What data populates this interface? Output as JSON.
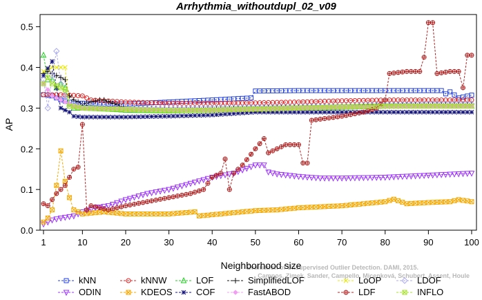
{
  "chart_data": {
    "type": "line",
    "title": "Arrhythmia_withoutdupl_02_v09",
    "xlabel": "Neighborhood size",
    "ylabel": "AP",
    "xlim": [
      0,
      100
    ],
    "ylim": [
      0,
      0.53
    ],
    "xticks": [
      1,
      10,
      20,
      30,
      40,
      50,
      60,
      70,
      80,
      90,
      100
    ],
    "yticks": [
      0.0,
      0.1,
      0.2,
      0.3,
      0.4,
      0.5
    ],
    "grid": false,
    "legend_position": "bottom",
    "watermark_lines": [
      "Campos, Zimek, Sander, Campello, Micenková, Schubert, Assent, Houle",
      "Evaluation of Unsupervised Outlier Detection. DAMI, 2015."
    ],
    "series": [
      {
        "name": "kNN",
        "color": "#1f3ee0",
        "marker": "square",
        "points": [
          [
            1,
            0.333
          ],
          [
            3,
            0.33
          ],
          [
            5,
            0.32
          ],
          [
            8,
            0.312
          ],
          [
            10,
            0.312
          ],
          [
            15,
            0.31
          ],
          [
            20,
            0.31
          ],
          [
            30,
            0.315
          ],
          [
            40,
            0.32
          ],
          [
            49,
            0.325
          ],
          [
            50,
            0.342
          ],
          [
            60,
            0.343
          ],
          [
            70,
            0.343
          ],
          [
            80,
            0.343
          ],
          [
            90,
            0.343
          ],
          [
            93,
            0.343
          ],
          [
            94,
            0.335
          ],
          [
            95,
            0.34
          ],
          [
            97,
            0.325
          ],
          [
            100,
            0.332
          ]
        ]
      },
      {
        "name": "kNNW",
        "color": "#e01f1f",
        "marker": "circle",
        "points": [
          [
            1,
            0.333
          ],
          [
            5,
            0.333
          ],
          [
            10,
            0.33
          ],
          [
            12,
            0.32
          ],
          [
            15,
            0.318
          ],
          [
            20,
            0.315
          ],
          [
            30,
            0.312
          ],
          [
            40,
            0.312
          ],
          [
            50,
            0.313
          ],
          [
            60,
            0.315
          ],
          [
            70,
            0.318
          ],
          [
            80,
            0.32
          ],
          [
            90,
            0.32
          ],
          [
            100,
            0.32
          ]
        ]
      },
      {
        "name": "LOF",
        "color": "#22cc22",
        "marker": "triangle-up",
        "points": [
          [
            1,
            0.43
          ],
          [
            2,
            0.37
          ],
          [
            3,
            0.37
          ],
          [
            4,
            0.35
          ],
          [
            5,
            0.36
          ],
          [
            6,
            0.35
          ],
          [
            7,
            0.31
          ],
          [
            8,
            0.3
          ],
          [
            10,
            0.3
          ],
          [
            15,
            0.298
          ],
          [
            20,
            0.295
          ],
          [
            30,
            0.293
          ],
          [
            40,
            0.295
          ],
          [
            50,
            0.298
          ],
          [
            60,
            0.3
          ],
          [
            70,
            0.302
          ],
          [
            80,
            0.305
          ],
          [
            90,
            0.305
          ],
          [
            100,
            0.305
          ]
        ]
      },
      {
        "name": "SimplifiedLOF",
        "color": "#111111",
        "marker": "plus",
        "points": [
          [
            1,
            0.385
          ],
          [
            2,
            0.39
          ],
          [
            3,
            0.385
          ],
          [
            4,
            0.38
          ],
          [
            5,
            0.375
          ],
          [
            6,
            0.37
          ],
          [
            7,
            0.33
          ],
          [
            8,
            0.32
          ],
          [
            10,
            0.31
          ],
          [
            14,
            0.32
          ],
          [
            15,
            0.32
          ],
          [
            20,
            0.3
          ],
          [
            30,
            0.298
          ],
          [
            40,
            0.298
          ],
          [
            50,
            0.3
          ],
          [
            60,
            0.303
          ],
          [
            70,
            0.305
          ],
          [
            80,
            0.31
          ],
          [
            90,
            0.31
          ],
          [
            100,
            0.31
          ]
        ]
      },
      {
        "name": "LoOP",
        "color": "#e8e800",
        "marker": "x",
        "points": [
          [
            1,
            0.39
          ],
          [
            3,
            0.4
          ],
          [
            4,
            0.4
          ],
          [
            5,
            0.4
          ],
          [
            6,
            0.4
          ],
          [
            7,
            0.31
          ],
          [
            10,
            0.3
          ],
          [
            20,
            0.296
          ],
          [
            30,
            0.294
          ],
          [
            40,
            0.294
          ],
          [
            50,
            0.296
          ],
          [
            60,
            0.3
          ],
          [
            70,
            0.302
          ],
          [
            80,
            0.305
          ],
          [
            90,
            0.305
          ],
          [
            100,
            0.305
          ]
        ]
      },
      {
        "name": "LDOF",
        "color": "#aaaaee",
        "marker": "diamond",
        "points": [
          [
            1,
            0.37
          ],
          [
            2,
            0.3
          ],
          [
            3,
            0.38
          ],
          [
            4,
            0.44
          ],
          [
            5,
            0.36
          ],
          [
            6,
            0.33
          ],
          [
            7,
            0.31
          ],
          [
            10,
            0.305
          ],
          [
            20,
            0.3
          ],
          [
            30,
            0.298
          ],
          [
            40,
            0.3
          ],
          [
            50,
            0.302
          ],
          [
            60,
            0.303
          ],
          [
            70,
            0.305
          ],
          [
            80,
            0.308
          ],
          [
            90,
            0.31
          ],
          [
            100,
            0.31
          ]
        ]
      },
      {
        "name": "ODIN",
        "color": "#9b30ff",
        "marker": "triangle-down",
        "points": [
          [
            1,
            0.015
          ],
          [
            3,
            0.025
          ],
          [
            5,
            0.03
          ],
          [
            8,
            0.035
          ],
          [
            10,
            0.045
          ],
          [
            13,
            0.055
          ],
          [
            16,
            0.06
          ],
          [
            20,
            0.075
          ],
          [
            25,
            0.09
          ],
          [
            30,
            0.1
          ],
          [
            35,
            0.115
          ],
          [
            40,
            0.13
          ],
          [
            45,
            0.14
          ],
          [
            50,
            0.16
          ],
          [
            52,
            0.16
          ],
          [
            53,
            0.143
          ],
          [
            55,
            0.138
          ],
          [
            60,
            0.132
          ],
          [
            65,
            0.128
          ],
          [
            70,
            0.128
          ],
          [
            80,
            0.13
          ],
          [
            90,
            0.135
          ],
          [
            100,
            0.14
          ]
        ]
      },
      {
        "name": "KDEOS",
        "color": "#f5a800",
        "marker": "square-x",
        "points": [
          [
            1,
            0.02
          ],
          [
            2,
            0.03
          ],
          [
            3,
            0.05
          ],
          [
            4,
            0.11
          ],
          [
            5,
            0.195
          ],
          [
            6,
            0.12
          ],
          [
            7,
            0.08
          ],
          [
            8,
            0.05
          ],
          [
            10,
            0.04
          ],
          [
            15,
            0.045
          ],
          [
            20,
            0.04
          ],
          [
            30,
            0.04
          ],
          [
            36,
            0.045
          ],
          [
            37,
            0.035
          ],
          [
            40,
            0.038
          ],
          [
            50,
            0.048
          ],
          [
            55,
            0.05
          ],
          [
            60,
            0.055
          ],
          [
            70,
            0.06
          ],
          [
            80,
            0.07
          ],
          [
            82,
            0.076
          ],
          [
            85,
            0.065
          ],
          [
            90,
            0.068
          ],
          [
            95,
            0.07
          ],
          [
            97,
            0.075
          ],
          [
            100,
            0.07
          ]
        ]
      },
      {
        "name": "COF",
        "color": "#10107a",
        "marker": "asterisk",
        "points": [
          [
            1,
            0.38
          ],
          [
            3,
            0.415
          ],
          [
            4,
            0.35
          ],
          [
            5,
            0.3
          ],
          [
            7,
            0.29
          ],
          [
            8,
            0.28
          ],
          [
            10,
            0.278
          ],
          [
            15,
            0.278
          ],
          [
            20,
            0.278
          ],
          [
            30,
            0.28
          ],
          [
            40,
            0.283
          ],
          [
            50,
            0.29
          ],
          [
            60,
            0.29
          ],
          [
            70,
            0.29
          ],
          [
            80,
            0.29
          ],
          [
            90,
            0.29
          ],
          [
            100,
            0.29
          ]
        ]
      },
      {
        "name": "FastABOD",
        "color": "#f0a0f0",
        "marker": "diamond-small",
        "points": [
          [
            1,
            0.36
          ],
          [
            3,
            0.33
          ],
          [
            5,
            0.32
          ],
          [
            8,
            0.305
          ],
          [
            10,
            0.3
          ],
          [
            20,
            0.298
          ],
          [
            30,
            0.295
          ],
          [
            40,
            0.295
          ],
          [
            50,
            0.297
          ],
          [
            60,
            0.3
          ],
          [
            70,
            0.302
          ],
          [
            80,
            0.303
          ],
          [
            90,
            0.305
          ],
          [
            100,
            0.305
          ]
        ]
      },
      {
        "name": "LDF",
        "color": "#b02020",
        "marker": "circle-plus",
        "points": [
          [
            1,
            0.065
          ],
          [
            2,
            0.06
          ],
          [
            3,
            0.075
          ],
          [
            4,
            0.09
          ],
          [
            5,
            0.1
          ],
          [
            6,
            0.11
          ],
          [
            7,
            0.13
          ],
          [
            8,
            0.15
          ],
          [
            9,
            0.155
          ],
          [
            10,
            0.26
          ],
          [
            11,
            0.05
          ],
          [
            12,
            0.06
          ],
          [
            14,
            0.055
          ],
          [
            16,
            0.05
          ],
          [
            18,
            0.055
          ],
          [
            20,
            0.06
          ],
          [
            25,
            0.07
          ],
          [
            30,
            0.08
          ],
          [
            35,
            0.09
          ],
          [
            38,
            0.1
          ],
          [
            40,
            0.13
          ],
          [
            42,
            0.14
          ],
          [
            43,
            0.175
          ],
          [
            44,
            0.1
          ],
          [
            45,
            0.14
          ],
          [
            47,
            0.16
          ],
          [
            50,
            0.2
          ],
          [
            52,
            0.225
          ],
          [
            53,
            0.19
          ],
          [
            55,
            0.2
          ],
          [
            57,
            0.21
          ],
          [
            60,
            0.21
          ],
          [
            61,
            0.165
          ],
          [
            62,
            0.165
          ],
          [
            63,
            0.27
          ],
          [
            70,
            0.28
          ],
          [
            75,
            0.29
          ],
          [
            78,
            0.3
          ],
          [
            80,
            0.32
          ],
          [
            81,
            0.385
          ],
          [
            85,
            0.39
          ],
          [
            88,
            0.39
          ],
          [
            89,
            0.425
          ],
          [
            90,
            0.51
          ],
          [
            91,
            0.51
          ],
          [
            92,
            0.385
          ],
          [
            95,
            0.39
          ],
          [
            97,
            0.39
          ],
          [
            98,
            0.35
          ],
          [
            99,
            0.43
          ],
          [
            100,
            0.43
          ]
        ]
      },
      {
        "name": "INFLO",
        "color": "#a8e030",
        "marker": "hourglass",
        "points": [
          [
            1,
            0.36
          ],
          [
            2,
            0.375
          ],
          [
            3,
            0.36
          ],
          [
            5,
            0.35
          ],
          [
            6,
            0.345
          ],
          [
            7,
            0.305
          ],
          [
            10,
            0.3
          ],
          [
            20,
            0.297
          ],
          [
            30,
            0.294
          ],
          [
            40,
            0.295
          ],
          [
            50,
            0.298
          ],
          [
            60,
            0.3
          ],
          [
            70,
            0.303
          ],
          [
            80,
            0.305
          ],
          [
            90,
            0.305
          ],
          [
            100,
            0.305
          ]
        ]
      }
    ]
  }
}
